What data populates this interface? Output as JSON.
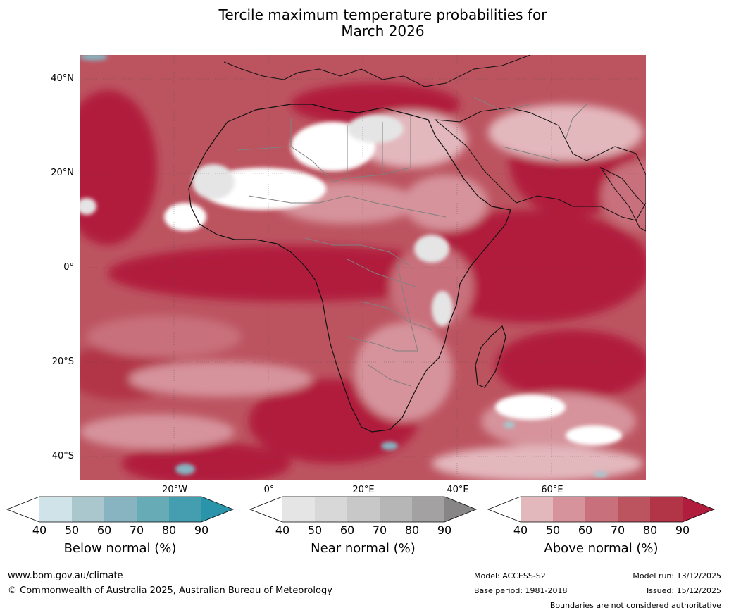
{
  "title_line1": "Tercile maximum temperature probabilities for",
  "title_line2": "March 2026",
  "map": {
    "lat_labels": [
      "40°N",
      "20°N",
      "0°",
      "20°S",
      "40°S"
    ],
    "lon_labels": [
      "20°W",
      "0°",
      "20°E",
      "40°E",
      "60°E"
    ]
  },
  "colorbars": [
    {
      "title": "Below normal (%)",
      "ticks": [
        "40",
        "50",
        "60",
        "70",
        "80",
        "90"
      ],
      "colors": [
        "#ffffff",
        "#cfe3e9",
        "#a9c7cd",
        "#87b4c0",
        "#67abb7",
        "#459eb0",
        "#2a94ab"
      ]
    },
    {
      "title": "Near normal (%)",
      "ticks": [
        "40",
        "50",
        "60",
        "70",
        "80",
        "90"
      ],
      "colors": [
        "#ffffff",
        "#e5e5e5",
        "#d8d8d8",
        "#c8c8c8",
        "#b6b6b6",
        "#a3a1a1",
        "#878585"
      ]
    },
    {
      "title": "Above normal (%)",
      "ticks": [
        "40",
        "50",
        "60",
        "70",
        "80",
        "90"
      ],
      "colors": [
        "#ffffff",
        "#e3b8bd",
        "#d6939b",
        "#c8707b",
        "#bc5460",
        "#b23447",
        "#b11d3c"
      ]
    }
  ],
  "footer": {
    "url": "www.bom.gov.au/climate",
    "copyright": "© Commonwealth of Australia 2025, Australian Bureau of Meteorology",
    "model": "Model: ACCESS-S2",
    "base_period": "Base period: 1981-2018",
    "model_run": "Model run: 13/12/2025",
    "issued": "Issued: 15/12/2025",
    "disclaimer": "Boundaries are not considered authoritative"
  }
}
